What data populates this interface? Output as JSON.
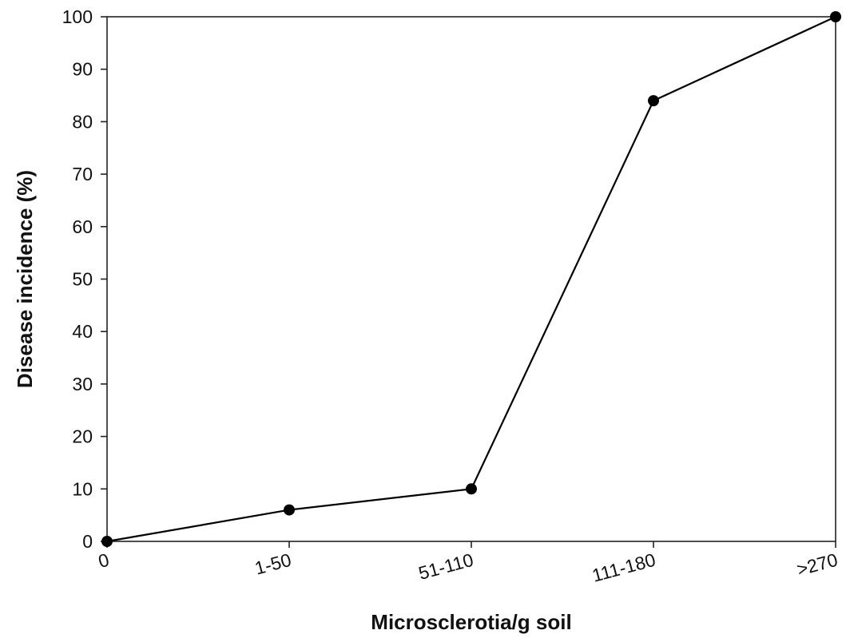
{
  "chart_data": {
    "type": "line",
    "title": "",
    "xlabel": "Microsclerotia/g soil",
    "ylabel": "Disease incidence (%)",
    "categories": [
      "0",
      "1-50",
      "51-110",
      "111-180",
      ">270"
    ],
    "series": [
      {
        "values": [
          0,
          6,
          10,
          84,
          100
        ]
      }
    ],
    "ylim": [
      0,
      100
    ],
    "yticks": [
      0,
      10,
      20,
      30,
      40,
      50,
      60,
      70,
      80,
      90,
      100
    ],
    "grid": false,
    "legend": "none",
    "colors": {
      "line": "#000000",
      "marker": "#000000",
      "axis": "#222222"
    }
  }
}
